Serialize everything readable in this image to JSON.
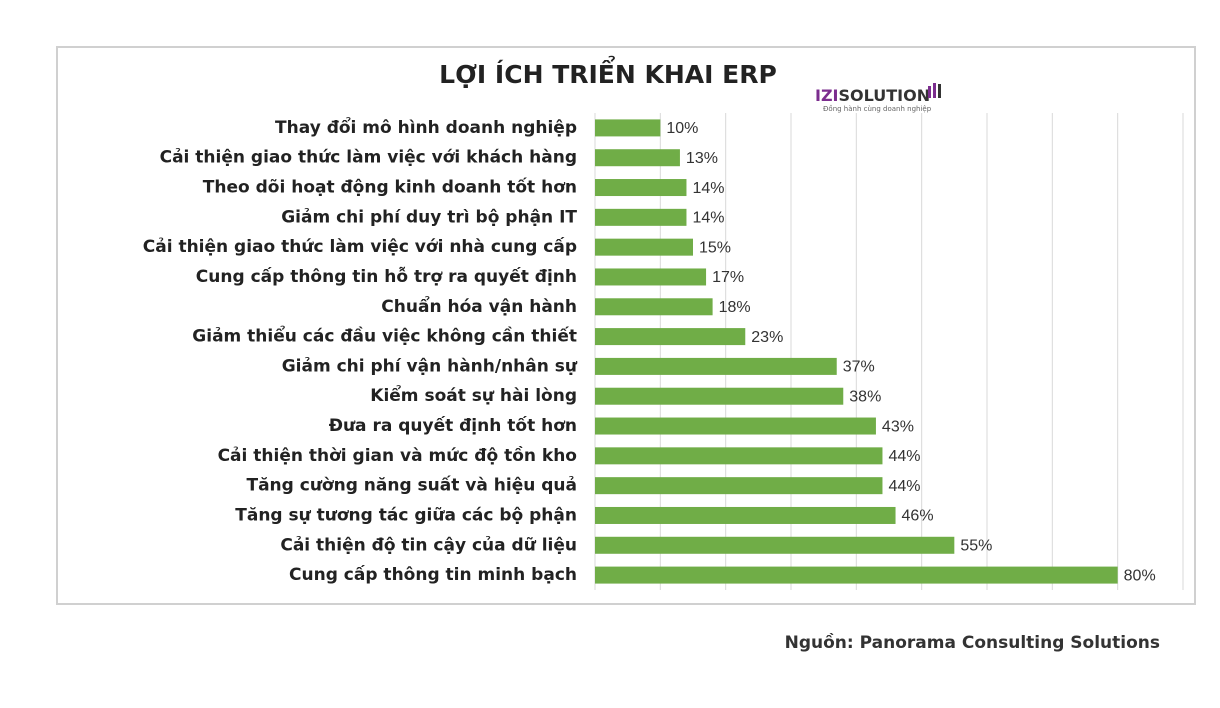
{
  "chart_data": {
    "type": "bar",
    "orientation": "horizontal",
    "title": "LỢI ÍCH TRIỂN KHAI ERP",
    "logo": [
      "IZI",
      "SOLUTION"
    ],
    "logo_tagline": "Đồng hành cùng doanh nghiệp",
    "source": "Nguồn: Panorama Consulting Solutions",
    "categories": [
      "Thay đổi mô hình doanh nghiệp",
      "Cải thiện giao thức làm việc với khách hàng",
      "Theo dõi hoạt động kinh doanh tốt hơn",
      "Giảm chi phí duy trì bộ phận IT",
      "Cải thiện giao thức làm việc với nhà cung cấp",
      "Cung cấp thông tin hỗ trợ ra quyết định",
      "Chuẩn hóa vận hành",
      "Giảm thiểu các đầu việc không cần thiết",
      "Giảm chi phí vận hành/nhân sự",
      "Kiểm soát sự hài lòng",
      "Đưa ra quyết định tốt hơn",
      "Cải thiện thời gian và mức độ tồn kho",
      "Tăng cường năng suất và hiệu quả",
      "Tăng sự tương tác giữa các bộ phận",
      "Cải thiện độ tin cậy của dữ liệu",
      "Cung cấp thông tin minh bạch"
    ],
    "values": [
      10,
      13,
      14,
      14,
      15,
      17,
      18,
      23,
      37,
      38,
      43,
      44,
      44,
      46,
      55,
      80
    ],
    "value_labels": [
      "10%",
      "13%",
      "14%",
      "14%",
      "15%",
      "17%",
      "18%",
      "23%",
      "37%",
      "38%",
      "43%",
      "44%",
      "44%",
      "46%",
      "55%",
      "80%"
    ],
    "color": "#70ad47",
    "xlim": [
      0,
      90
    ],
    "xticks": [
      0,
      10,
      20,
      30,
      40,
      50,
      60,
      70,
      80,
      90
    ],
    "tick_labels": false,
    "grid": true
  }
}
